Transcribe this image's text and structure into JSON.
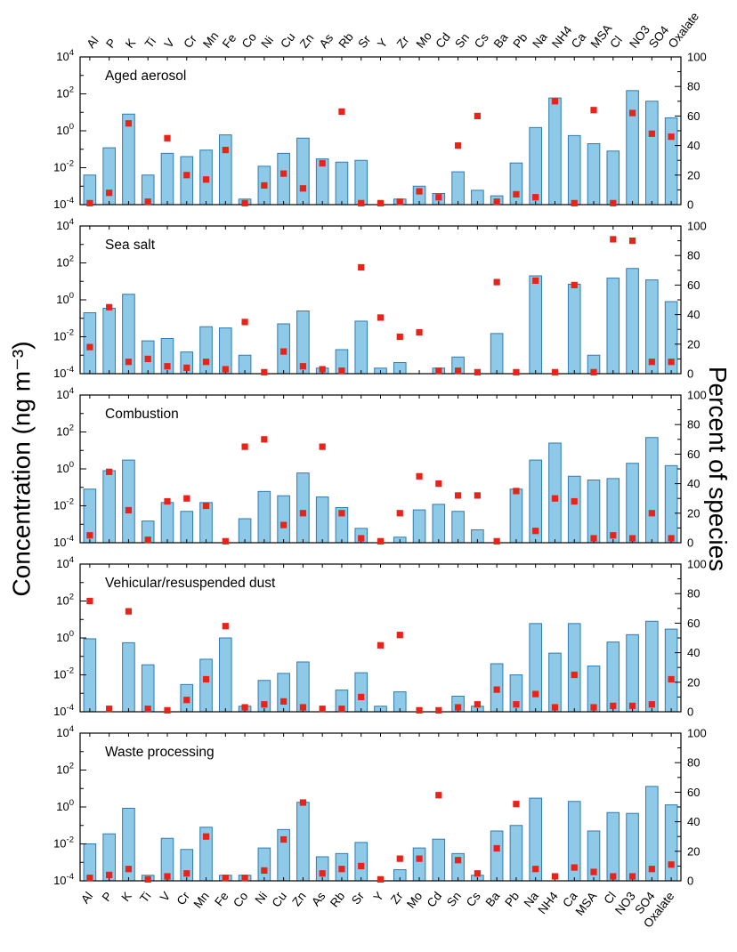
{
  "figure": {
    "left_axis_label": "Concentration (ng m⁻³)",
    "right_axis_label": "Percent of species",
    "categories": [
      "Al",
      "P",
      "K",
      "Ti",
      "V",
      "Cr",
      "Mn",
      "Fe",
      "Co",
      "Ni",
      "Cu",
      "Zn",
      "As",
      "Rb",
      "Sr",
      "Y",
      "Zr",
      "Mo",
      "Cd",
      "Sn",
      "Cs",
      "Ba",
      "Pb",
      "Na",
      "NH4",
      "Ca",
      "MSA",
      "Cl",
      "NO3",
      "SO4",
      "Oxalate"
    ],
    "left_ticks_exponents": [
      4,
      2,
      0,
      -2,
      -4
    ],
    "right_ticks": [
      100,
      80,
      60,
      40,
      20,
      0
    ],
    "ylim_log": [
      0.0001,
      10000
    ],
    "percent_range": [
      0,
      100
    ],
    "colors": {
      "bar_fill": "#8ec9e8",
      "bar_stroke": "#2e7cb0",
      "marker": "#e8231a",
      "axis": "#000000"
    },
    "marker_shape": "red-square"
  },
  "chart_data": [
    {
      "type": "bar",
      "title": "Aged aerosol",
      "concentration_ng_m3": [
        0.004,
        0.12,
        8,
        0.004,
        0.06,
        0.04,
        0.09,
        0.6,
        0.0002,
        0.012,
        0.06,
        0.4,
        0.03,
        0.02,
        0.025,
        0.0001,
        0.0002,
        0.001,
        0.0004,
        0.006,
        0.0006,
        0.0003,
        0.018,
        1.5,
        60,
        0.55,
        0.2,
        0.08,
        150,
        40,
        5
      ],
      "percent_of_species": [
        1,
        8,
        55,
        2,
        45,
        20,
        17,
        37,
        1,
        13,
        21,
        11,
        28,
        63,
        1,
        1,
        2,
        9,
        5,
        40,
        60,
        2,
        7,
        5,
        70,
        1,
        64,
        1,
        62,
        48,
        46
      ]
    },
    {
      "type": "bar",
      "title": "Sea salt",
      "concentration_ng_m3": [
        0.2,
        0.35,
        2,
        0.006,
        0.008,
        0.0015,
        0.035,
        0.03,
        0.001,
        0.0001,
        0.05,
        0.25,
        0.0002,
        0.002,
        0.07,
        0.0002,
        0.0004,
        0.0001,
        0.0002,
        0.0008,
        0.0001,
        0.015,
        0.0001,
        20,
        0.0001,
        7,
        0.001,
        15,
        50,
        12,
        0.8
      ],
      "percent_of_species": [
        18,
        45,
        8,
        10,
        5,
        4,
        8,
        3,
        35,
        1,
        15,
        5,
        3,
        2,
        72,
        38,
        25,
        28,
        2,
        2,
        1,
        62,
        1,
        63,
        1,
        60,
        1,
        91,
        90,
        8,
        8
      ]
    },
    {
      "type": "bar",
      "title": "Combustion",
      "concentration_ng_m3": [
        0.08,
        0.8,
        3,
        0.0015,
        0.015,
        0.005,
        0.015,
        0.0001,
        0.002,
        0.06,
        0.035,
        0.6,
        0.03,
        0.008,
        0.0006,
        0.0001,
        0.0002,
        0.006,
        0.012,
        0.005,
        0.0005,
        0.0001,
        0.08,
        3,
        25,
        0.4,
        0.25,
        0.3,
        2,
        50,
        1.5
      ],
      "percent_of_species": [
        5,
        48,
        22,
        2,
        28,
        30,
        25,
        1,
        65,
        70,
        12,
        20,
        65,
        20,
        3,
        1,
        20,
        45,
        40,
        32,
        32,
        1,
        35,
        8,
        30,
        28,
        3,
        5,
        3,
        20,
        3
      ]
    },
    {
      "type": "bar",
      "title": "Vehicular/resuspended dust",
      "concentration_ng_m3": [
        0.9,
        0.0001,
        0.55,
        0.035,
        0.0001,
        0.003,
        0.07,
        1.0,
        0.0002,
        0.005,
        0.012,
        0.05,
        0.0001,
        0.0015,
        0.013,
        0.0002,
        0.0012,
        0.0001,
        0.0001,
        0.0007,
        0.0002,
        0.04,
        0.01,
        6,
        0.15,
        6,
        0.03,
        0.6,
        1.5,
        8,
        3
      ],
      "percent_of_species": [
        75,
        2,
        68,
        2,
        1,
        8,
        22,
        58,
        3,
        5,
        7,
        3,
        2,
        2,
        10,
        45,
        52,
        1,
        1,
        3,
        5,
        15,
        5,
        12,
        3,
        25,
        3,
        4,
        4,
        5,
        22
      ]
    },
    {
      "type": "bar",
      "title": "Waste processing",
      "concentration_ng_m3": [
        0.01,
        0.035,
        0.85,
        0.0002,
        0.02,
        0.005,
        0.08,
        0.0002,
        0.0002,
        0.006,
        0.06,
        1.8,
        0.002,
        0.003,
        0.012,
        0.0001,
        0.0004,
        0.006,
        0.018,
        0.003,
        0.0002,
        0.05,
        0.1,
        3,
        0.0001,
        2,
        0.05,
        0.5,
        0.45,
        13,
        1.3
      ],
      "percent_of_species": [
        2,
        4,
        8,
        1,
        3,
        5,
        30,
        2,
        2,
        7,
        28,
        53,
        5,
        8,
        10,
        1,
        15,
        15,
        58,
        14,
        5,
        22,
        52,
        8,
        3,
        9,
        6,
        3,
        3,
        8,
        11
      ]
    }
  ]
}
